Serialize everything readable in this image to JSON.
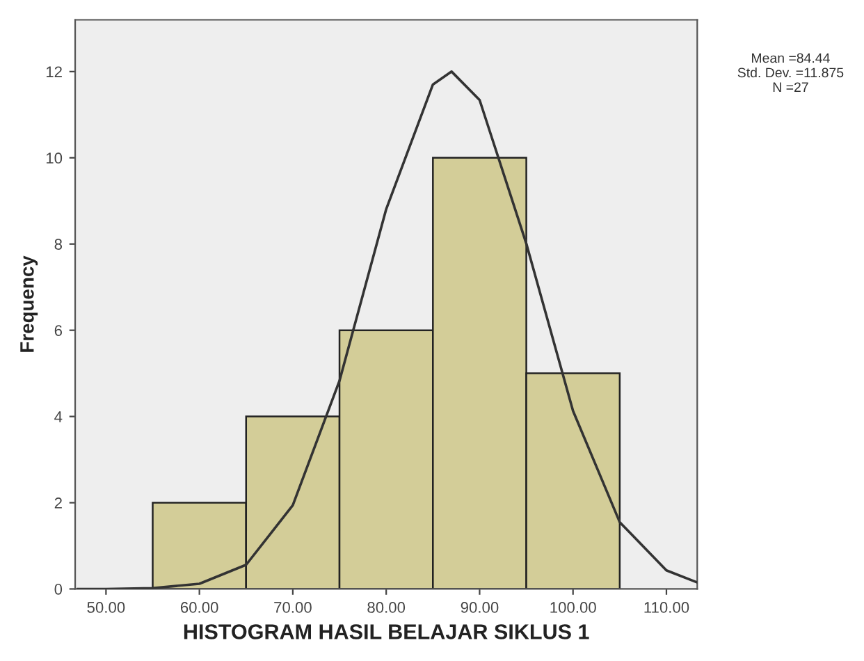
{
  "chart_data": {
    "type": "histogram",
    "xlabel": "HISTOGRAM HASIL BELAJAR SIKLUS 1",
    "ylabel": "Frequency",
    "series": [
      {
        "bins": [
          55,
          65,
          75,
          85,
          95,
          105
        ],
        "values": [
          2,
          4,
          6,
          10,
          5
        ],
        "color": "#d3cd98"
      },
      {
        "type": "line",
        "x": [
          47,
          50,
          55,
          60,
          65,
          70,
          75,
          80,
          85,
          87,
          90,
          95,
          100,
          105,
          110,
          113.3
        ],
        "values": [
          0,
          0,
          0.02,
          0.12,
          0.56,
          1.94,
          4.83,
          8.81,
          11.7,
          12,
          11.34,
          8.01,
          4.13,
          1.55,
          0.43,
          0.15
        ],
        "color": "#333333"
      }
    ],
    "xlim": [
      46.7,
      113.3
    ],
    "ylim": [
      0,
      13.2
    ],
    "xticks": [
      {
        "value": 50,
        "label": "50.00"
      },
      {
        "value": 60,
        "label": "60.00"
      },
      {
        "value": 70,
        "label": "70.00"
      },
      {
        "value": 80,
        "label": "80.00"
      },
      {
        "value": 90,
        "label": "90.00"
      },
      {
        "value": 100,
        "label": "100.00"
      },
      {
        "value": 110,
        "label": "110.00"
      }
    ],
    "yticks": [
      0,
      2,
      4,
      6,
      8,
      10,
      12
    ],
    "annotations": [
      "Mean =84.44\nStd. Dev. =11.875\nN =27"
    ],
    "grid": false,
    "legend": false
  }
}
